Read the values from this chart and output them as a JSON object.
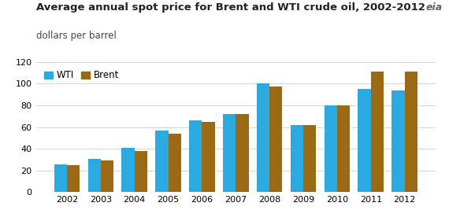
{
  "title_line1": "Average annual spot price for Brent and WTI crude oil, 2002-2012",
  "title_line2": "dollars per barrel",
  "years": [
    2002,
    2003,
    2004,
    2005,
    2006,
    2007,
    2008,
    2009,
    2010,
    2011,
    2012
  ],
  "wti": [
    26,
    31,
    41,
    57,
    66,
    72,
    100,
    62,
    80,
    95,
    94
  ],
  "brent": [
    25,
    29,
    38,
    54,
    65,
    72,
    97,
    62,
    80,
    111,
    111
  ],
  "wti_color": "#29ABE2",
  "brent_color": "#9B6914",
  "background_color": "#ffffff",
  "ylim": [
    0,
    120
  ],
  "yticks": [
    0,
    20,
    40,
    60,
    80,
    100,
    120
  ],
  "legend_labels": [
    "WTI",
    "Brent"
  ],
  "bar_width": 0.38,
  "title_fontsize": 9.5,
  "subtitle_fontsize": 8.5,
  "tick_fontsize": 8,
  "legend_fontsize": 8.5
}
